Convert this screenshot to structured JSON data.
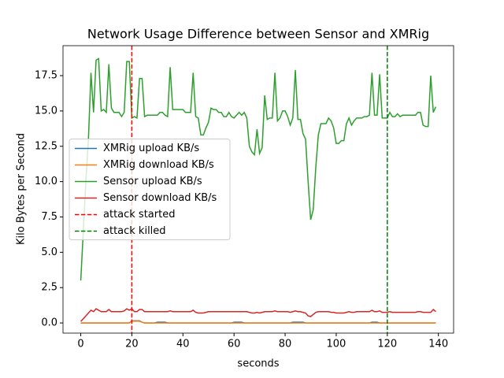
{
  "chart_data": {
    "type": "line",
    "title": "Network Usage Difference between Sensor and XMRig",
    "x_label": "seconds",
    "y_label": "Kilo Bytes per Second",
    "x": [
      0,
      1,
      2,
      3,
      4,
      5,
      6,
      7,
      8,
      9,
      10,
      11,
      12,
      13,
      14,
      15,
      16,
      17,
      18,
      19,
      20,
      21,
      22,
      23,
      24,
      25,
      26,
      27,
      28,
      29,
      30,
      31,
      32,
      33,
      34,
      35,
      36,
      37,
      38,
      39,
      40,
      41,
      42,
      43,
      44,
      45,
      46,
      47,
      48,
      49,
      50,
      51,
      52,
      53,
      54,
      55,
      56,
      57,
      58,
      59,
      60,
      61,
      62,
      63,
      64,
      65,
      66,
      67,
      68,
      69,
      70,
      71,
      72,
      73,
      74,
      75,
      76,
      77,
      78,
      79,
      80,
      81,
      82,
      83,
      84,
      85,
      86,
      87,
      88,
      89,
      90,
      91,
      92,
      93,
      94,
      95,
      96,
      97,
      98,
      99,
      100,
      101,
      102,
      103,
      104,
      105,
      106,
      107,
      108,
      109,
      110,
      111,
      112,
      113,
      114,
      115,
      116,
      117,
      118,
      119,
      120,
      121,
      122,
      123,
      124,
      125,
      126,
      127,
      128,
      129,
      130,
      131,
      132,
      133,
      134,
      135,
      136,
      137,
      138,
      139
    ],
    "series": [
      {
        "name": "XMRig upload KB/s",
        "color": "#1f77b4",
        "values": [
          0,
          0,
          0,
          0,
          0,
          0,
          0,
          0,
          0,
          0,
          0,
          0,
          0,
          0,
          0,
          0,
          0,
          0,
          0,
          0,
          0.15,
          0.15,
          0.15,
          0.15,
          0.05,
          0,
          0,
          0,
          0,
          0,
          0.05,
          0.05,
          0.05,
          0.05,
          0,
          0,
          0,
          0,
          0,
          0,
          0,
          0,
          0,
          0,
          0,
          0,
          0,
          0,
          0,
          0,
          0,
          0,
          0,
          0,
          0,
          0,
          0,
          0,
          0,
          0,
          0.05,
          0.05,
          0.05,
          0.05,
          0,
          0,
          0,
          0,
          0,
          0,
          0,
          0,
          0,
          0,
          0,
          0,
          0,
          0,
          0,
          0,
          0,
          0,
          0,
          0.05,
          0.05,
          0.05,
          0.05,
          0.05,
          0,
          0,
          0,
          0,
          0,
          0,
          0,
          0,
          0,
          0,
          0,
          0,
          0,
          0,
          0,
          0,
          0,
          0,
          0,
          0,
          0,
          0,
          0,
          0,
          0,
          0,
          0.05,
          0.05,
          0.05,
          0,
          0,
          0,
          0,
          0,
          0,
          0,
          0,
          0,
          0,
          0,
          0,
          0,
          0,
          0,
          0,
          0,
          0,
          0,
          0,
          0,
          0,
          0
        ]
      },
      {
        "name": "XMRig download KB/s",
        "color": "#ff7f0e",
        "values": [
          0,
          0,
          0,
          0,
          0,
          0,
          0,
          0,
          0,
          0,
          0,
          0,
          0,
          0,
          0,
          0,
          0,
          0,
          0,
          0,
          0.12,
          0.12,
          0.12,
          0.12,
          0.05,
          0,
          0,
          0,
          0,
          0,
          0,
          0,
          0,
          0,
          0,
          0,
          0,
          0,
          0,
          0,
          0,
          0,
          0,
          0,
          0,
          0,
          0,
          0,
          0,
          0,
          0,
          0,
          0,
          0,
          0,
          0,
          0,
          0,
          0,
          0,
          0,
          0,
          0,
          0,
          0,
          0,
          0,
          0,
          0,
          0,
          0,
          0,
          0,
          0,
          0,
          0,
          0,
          0,
          0,
          0,
          0,
          0,
          0,
          0,
          0,
          0,
          0,
          0,
          0,
          0,
          0,
          0,
          0,
          0,
          0,
          0,
          0,
          0,
          0,
          0,
          0,
          0,
          0,
          0,
          0,
          0,
          0,
          0,
          0,
          0,
          0,
          0,
          0,
          0,
          0,
          0,
          0,
          0,
          0,
          0,
          0,
          0,
          0,
          0,
          0,
          0,
          0,
          0,
          0,
          0,
          0,
          0,
          0,
          0,
          0,
          0,
          0,
          0,
          0,
          0
        ]
      },
      {
        "name": "Sensor upload KB/s",
        "color": "#2ca02c",
        "values": [
          3.0,
          6.5,
          10.0,
          13.0,
          17.7,
          14.9,
          18.6,
          18.7,
          15.0,
          15.1,
          14.9,
          18.3,
          15.2,
          14.9,
          14.9,
          14.9,
          14.6,
          14.9,
          18.5,
          18.5,
          14.5,
          14.6,
          14.5,
          17.3,
          17.3,
          14.6,
          14.7,
          14.7,
          14.7,
          14.7,
          14.7,
          14.9,
          14.9,
          14.7,
          14.6,
          18.1,
          15.1,
          15.1,
          15.1,
          15.1,
          15.1,
          14.9,
          14.9,
          14.9,
          17.7,
          14.6,
          14.5,
          13.3,
          13.3,
          13.8,
          14.2,
          15.2,
          15.1,
          15.1,
          14.9,
          14.9,
          14.6,
          14.6,
          14.9,
          14.6,
          14.5,
          14.7,
          14.9,
          14.7,
          14.9,
          14.5,
          12.5,
          12.1,
          11.9,
          13.7,
          12.0,
          12.4,
          16.1,
          14.4,
          14.5,
          14.5,
          17.7,
          14.3,
          14.5,
          15.0,
          15.0,
          14.6,
          14.0,
          14.5,
          17.9,
          14.4,
          14.4,
          13.4,
          13.0,
          10.0,
          7.3,
          8.0,
          11.0,
          13.3,
          14.1,
          14.1,
          14.1,
          14.5,
          14.3,
          13.8,
          12.7,
          12.7,
          12.9,
          12.9,
          14.1,
          14.5,
          14.0,
          14.3,
          14.5,
          14.5,
          14.5,
          14.6,
          14.6,
          14.7,
          17.7,
          14.7,
          14.7,
          17.6,
          14.5,
          14.5,
          14.5,
          14.9,
          14.6,
          14.6,
          14.8,
          14.6,
          14.7,
          14.7,
          14.7,
          14.7,
          14.7,
          14.7,
          14.9,
          14.9,
          14.0,
          13.9,
          13.9,
          17.5,
          14.9,
          15.3
        ]
      },
      {
        "name": "Sensor download KB/s",
        "color": "#d62728",
        "values": [
          0.1,
          0.3,
          0.5,
          0.7,
          0.9,
          0.8,
          1.0,
          0.9,
          0.8,
          0.8,
          0.8,
          0.95,
          0.8,
          0.8,
          0.8,
          0.8,
          0.8,
          0.85,
          1.0,
          0.9,
          1.0,
          0.8,
          0.8,
          0.95,
          0.95,
          0.8,
          0.8,
          0.8,
          0.8,
          0.8,
          0.8,
          0.8,
          0.8,
          0.8,
          0.8,
          0.85,
          0.8,
          0.8,
          0.8,
          0.8,
          0.8,
          0.8,
          0.8,
          0.8,
          0.9,
          0.75,
          0.7,
          0.7,
          0.7,
          0.75,
          0.8,
          0.8,
          0.8,
          0.8,
          0.8,
          0.8,
          0.8,
          0.8,
          0.8,
          0.8,
          0.8,
          0.8,
          0.8,
          0.8,
          0.8,
          0.8,
          0.75,
          0.7,
          0.7,
          0.75,
          0.7,
          0.75,
          0.8,
          0.8,
          0.8,
          0.8,
          0.85,
          0.8,
          0.8,
          0.8,
          0.8,
          0.8,
          0.75,
          0.8,
          0.85,
          0.8,
          0.8,
          0.75,
          0.7,
          0.5,
          0.45,
          0.6,
          0.75,
          0.8,
          0.8,
          0.8,
          0.8,
          0.8,
          0.75,
          0.75,
          0.7,
          0.7,
          0.7,
          0.7,
          0.75,
          0.8,
          0.75,
          0.75,
          0.8,
          0.8,
          0.8,
          0.8,
          0.8,
          0.8,
          0.9,
          0.8,
          0.8,
          0.85,
          0.75,
          0.75,
          0.75,
          0.8,
          0.75,
          0.75,
          0.75,
          0.75,
          0.75,
          0.75,
          0.75,
          0.75,
          0.75,
          0.75,
          0.8,
          0.8,
          0.75,
          0.75,
          0.75,
          0.75,
          0.95,
          0.8
        ]
      }
    ],
    "vlines": [
      {
        "name": "attack started",
        "color": "#ff0000",
        "x": 20
      },
      {
        "name": "attack killed",
        "color": "#008000",
        "x": 120
      }
    ],
    "xlim": [
      -6.95,
      145.95
    ],
    "ylim": [
      -0.72,
      19.62
    ],
    "xticks": [
      0,
      20,
      40,
      60,
      80,
      100,
      120,
      140
    ],
    "yticks": [
      {
        "value": 0,
        "label": "0.0"
      },
      2.5,
      {
        "value": 5,
        "label": "5.0"
      },
      7.5,
      {
        "value": 10,
        "label": "10.0"
      },
      12.5,
      {
        "value": 15,
        "label": "15.0"
      },
      17.5
    ],
    "legend": "center left",
    "grid": false
  }
}
